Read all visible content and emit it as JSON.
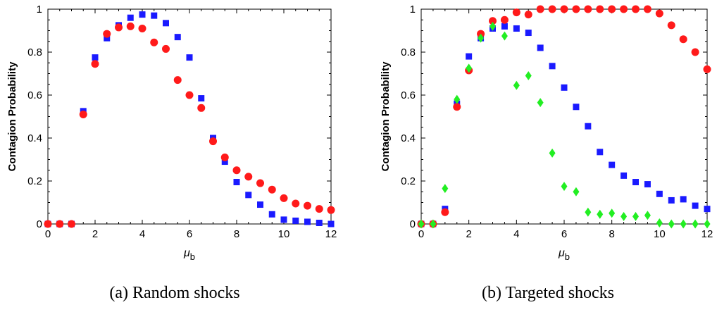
{
  "chart_data": [
    {
      "type": "scatter",
      "caption": "(a) Random shocks",
      "xlabel": "μ",
      "xlabel_sub": "b",
      "ylabel": "Contagion Probability",
      "xlim": [
        0,
        12
      ],
      "ylim": [
        0,
        1
      ],
      "xticks": [
        0,
        2,
        4,
        6,
        8,
        10,
        12
      ],
      "yticks": [
        0,
        0.2,
        0.4,
        0.6,
        0.8,
        1
      ],
      "ytick_labels": [
        "0",
        "0.2",
        "0.4",
        "0.6",
        "0.8",
        "1"
      ],
      "series": [
        {
          "marker": "square",
          "color": "#1a1aff",
          "x": [
            0,
            0.5,
            1,
            1.5,
            2,
            2.5,
            3,
            3.5,
            4,
            4.5,
            5,
            5.5,
            6,
            6.5,
            7,
            7.5,
            8,
            8.5,
            9,
            9.5,
            10,
            10.5,
            11,
            11.5,
            12
          ],
          "values": [
            0,
            0,
            0,
            0.525,
            0.775,
            0.865,
            0.925,
            0.96,
            0.975,
            0.97,
            0.935,
            0.87,
            0.775,
            0.585,
            0.4,
            0.29,
            0.195,
            0.135,
            0.09,
            0.045,
            0.02,
            0.015,
            0.01,
            0.005,
            0
          ]
        },
        {
          "marker": "circle",
          "color": "#ff1a1a",
          "x": [
            0,
            0.5,
            1,
            1.5,
            2,
            2.5,
            3,
            3.5,
            4,
            4.5,
            5,
            5.5,
            6,
            6.5,
            7,
            7.5,
            8,
            8.5,
            9,
            9.5,
            10,
            10.5,
            11,
            11.5,
            12
          ],
          "values": [
            0,
            0,
            0,
            0.51,
            0.745,
            0.885,
            0.915,
            0.92,
            0.91,
            0.845,
            0.815,
            0.67,
            0.6,
            0.54,
            0.385,
            0.31,
            0.25,
            0.22,
            0.19,
            0.16,
            0.12,
            0.095,
            0.085,
            0.07,
            0.065
          ]
        }
      ]
    },
    {
      "type": "scatter",
      "caption": "(b) Targeted shocks",
      "xlabel": "μ",
      "xlabel_sub": "b",
      "ylabel": "Contagion Probability",
      "xlim": [
        0,
        12
      ],
      "ylim": [
        0,
        1
      ],
      "xticks": [
        0,
        2,
        4,
        6,
        8,
        10,
        12
      ],
      "yticks": [
        0,
        0.2,
        0.4,
        0.6,
        0.8,
        1
      ],
      "ytick_labels": [
        "0",
        "0.2",
        "0.4",
        "0.6",
        "0.8",
        "1"
      ],
      "series": [
        {
          "marker": "square",
          "color": "#1a1aff",
          "x": [
            0,
            0.5,
            1,
            1.5,
            2,
            2.5,
            3,
            3.5,
            4,
            4.5,
            5,
            5.5,
            6,
            6.5,
            7,
            7.5,
            8,
            8.5,
            9,
            9.5,
            10,
            10.5,
            11,
            11.5,
            12
          ],
          "values": [
            0,
            0,
            0.07,
            0.56,
            0.78,
            0.865,
            0.91,
            0.92,
            0.91,
            0.89,
            0.82,
            0.735,
            0.635,
            0.545,
            0.455,
            0.335,
            0.275,
            0.225,
            0.195,
            0.185,
            0.14,
            0.11,
            0.115,
            0.085,
            0.07
          ]
        },
        {
          "marker": "circle",
          "color": "#ff1a1a",
          "x": [
            0,
            0.5,
            1,
            1.5,
            2,
            2.5,
            3,
            3.5,
            4,
            4.5,
            5,
            5.5,
            6,
            6.5,
            7,
            7.5,
            8,
            8.5,
            9,
            9.5,
            10,
            10.5,
            11,
            11.5,
            12
          ],
          "values": [
            0,
            0,
            0.055,
            0.545,
            0.715,
            0.885,
            0.945,
            0.95,
            0.985,
            0.975,
            1,
            1,
            1,
            1,
            1,
            1,
            1,
            1,
            1,
            1,
            0.98,
            0.925,
            0.86,
            0.8,
            0.72
          ]
        },
        {
          "marker": "diamond",
          "color": "#22ee22",
          "x": [
            0,
            0.5,
            1,
            1.5,
            2,
            2.5,
            3,
            3.5,
            4,
            4.5,
            5,
            5.5,
            6,
            6.5,
            7,
            7.5,
            8,
            8.5,
            9,
            9.5,
            10,
            10.5,
            11,
            11.5,
            12
          ],
          "values": [
            0,
            0,
            0.165,
            0.58,
            0.725,
            0.865,
            0.92,
            0.875,
            0.645,
            0.69,
            0.565,
            0.33,
            0.175,
            0.15,
            0.055,
            0.045,
            0.05,
            0.035,
            0.035,
            0.04,
            0.005,
            0,
            0,
            0,
            0
          ]
        }
      ]
    }
  ]
}
